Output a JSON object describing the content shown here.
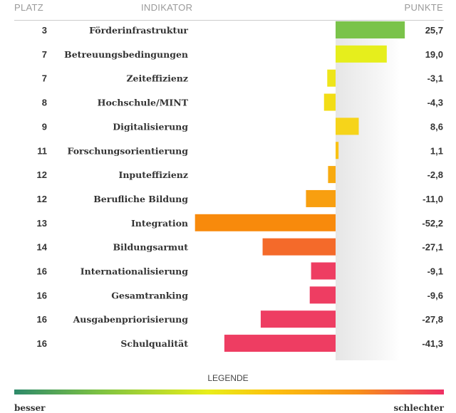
{
  "chart_data": {
    "type": "bar",
    "orientation": "horizontal",
    "headers": {
      "rank": "PLATZ",
      "indicator": "INDIKATOR",
      "points": "PUNKTE"
    },
    "rows": [
      {
        "rank": "3",
        "label": "Förderinfrastruktur",
        "value": 25.7,
        "display": "25,7",
        "color": "#7ac34a"
      },
      {
        "rank": "7",
        "label": "Betreuungsbedingungen",
        "value": 19.0,
        "display": "19,0",
        "color": "#e6ee1c"
      },
      {
        "rank": "7",
        "label": "Zeiteffizienz",
        "value": -3.1,
        "display": "-3,1",
        "color": "#eee51a"
      },
      {
        "rank": "8",
        "label": "Hochschule/MINT",
        "value": -4.3,
        "display": "-4,3",
        "color": "#f2dd16"
      },
      {
        "rank": "9",
        "label": "Digitalisierung",
        "value": 8.6,
        "display": "8,6",
        "color": "#f6d41a"
      },
      {
        "rank": "11",
        "label": "Forschungsorientierung",
        "value": 1.1,
        "display": "1,1",
        "color": "#f9c214"
      },
      {
        "rank": "12",
        "label": "Inputeffizienz",
        "value": -2.8,
        "display": "-2,8",
        "color": "#f8aa10"
      },
      {
        "rank": "12",
        "label": "Berufliche Bildung",
        "value": -11.0,
        "display": "-11,0",
        "color": "#f89f10"
      },
      {
        "rank": "13",
        "label": "Integration",
        "value": -52.2,
        "display": "-52,2",
        "color": "#f88a0c"
      },
      {
        "rank": "14",
        "label": "Bildungsarmut",
        "value": -27.1,
        "display": "-27,1",
        "color": "#f46a2a"
      },
      {
        "rank": "16",
        "label": "Internationalisierung",
        "value": -9.1,
        "display": "-9,1",
        "color": "#ee3d62"
      },
      {
        "rank": "16",
        "label": "Gesamtranking",
        "value": -9.6,
        "display": "-9,6",
        "color": "#ee3d62"
      },
      {
        "rank": "16",
        "label": "Ausgabenpriorisierung",
        "value": -27.8,
        "display": "-27,8",
        "color": "#ee3d62"
      },
      {
        "rank": "16",
        "label": "Schulqualität",
        "value": -41.3,
        "display": "-41,3",
        "color": "#ee3d62"
      }
    ],
    "legend": {
      "title": "LEGENDE",
      "left": "besser",
      "right": "schlechter"
    }
  }
}
